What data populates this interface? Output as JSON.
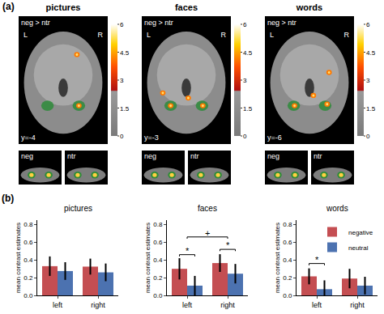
{
  "panel_a": {
    "label": "(a)",
    "colorbar": {
      "range": [
        0,
        6
      ],
      "ticks": [
        0,
        1.5,
        3,
        4.5,
        6
      ]
    },
    "panels": [
      {
        "title": "pictures",
        "contrast": "neg > ntr",
        "left": "L",
        "right": "R",
        "slice": "y=-4",
        "insets": [
          "neg",
          "ntr"
        ]
      },
      {
        "title": "faces",
        "contrast": "neg > ntr",
        "left": "L",
        "right": "R",
        "slice": "y=-3",
        "insets": [
          "neg",
          "ntr"
        ]
      },
      {
        "title": "words",
        "contrast": "neg > ntr",
        "left": "L",
        "right": "R",
        "slice": "y=-6",
        "insets": [
          "neg",
          "ntr"
        ]
      }
    ]
  },
  "panel_b": {
    "label": "(b)"
  },
  "chart_data": [
    {
      "type": "bar",
      "title": "pictures",
      "y_label": "mean contrast estimates",
      "categories": [
        "left",
        "right"
      ],
      "series": [
        {
          "name": "negative",
          "color": "#c44e52",
          "values": [
            0.33,
            0.325
          ],
          "errors": [
            0.11,
            0.09
          ]
        },
        {
          "name": "neutral",
          "color": "#4c72b0",
          "values": [
            0.275,
            0.26
          ],
          "errors": [
            0.1,
            0.1
          ]
        }
      ],
      "ylim": [
        0,
        0.85
      ],
      "yticks": [
        {
          "value": 0,
          "label": "0.0"
        },
        0.2,
        0.4,
        0.6,
        0.8
      ],
      "significance": []
    },
    {
      "type": "bar",
      "title": "faces",
      "y_label": "mean contrast estimates",
      "categories": [
        "left",
        "right"
      ],
      "series": [
        {
          "name": "negative",
          "color": "#c44e52",
          "values": [
            0.3,
            0.365
          ],
          "errors": [
            0.12,
            0.1
          ]
        },
        {
          "name": "neutral",
          "color": "#4c72b0",
          "values": [
            0.11,
            0.245
          ],
          "errors": [
            0.11,
            0.11
          ]
        }
      ],
      "ylim": [
        0,
        0.85
      ],
      "yticks": [
        {
          "value": 0,
          "label": "0.0"
        },
        0.2,
        0.4,
        0.6,
        0.8
      ],
      "significance": [
        {
          "category": "left",
          "label": "*",
          "y": 0.46
        },
        {
          "category": "right",
          "label": "*",
          "y": 0.52
        },
        {
          "from": "left",
          "to": "right",
          "label": "+",
          "y": 0.66
        }
      ]
    },
    {
      "type": "bar",
      "title": "words",
      "y_label": "mean contrast estimates",
      "categories": [
        "left",
        "right"
      ],
      "series": [
        {
          "name": "negative",
          "color": "#c44e52",
          "values": [
            0.215,
            0.19
          ],
          "errors": [
            0.09,
            0.11
          ]
        },
        {
          "name": "neutral",
          "color": "#4c72b0",
          "values": [
            0.07,
            0.11
          ],
          "errors": [
            0.1,
            0.1
          ]
        }
      ],
      "ylim": [
        0,
        0.85
      ],
      "yticks": [
        {
          "value": 0,
          "label": "0.0"
        },
        0.2,
        0.4,
        0.6,
        0.8
      ],
      "legend": "upper right",
      "significance": [
        {
          "category": "left",
          "label": "*",
          "y": 0.36
        }
      ]
    }
  ]
}
